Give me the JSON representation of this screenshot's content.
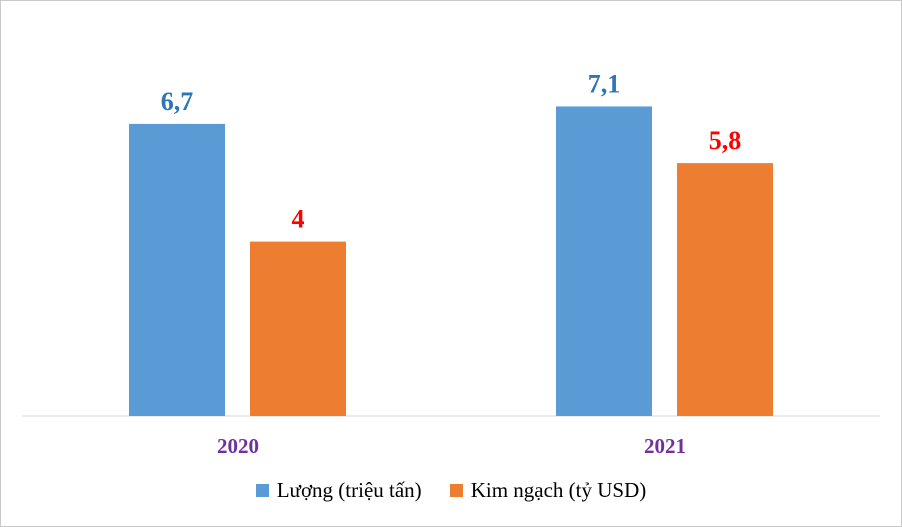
{
  "chart_data": {
    "type": "bar",
    "categories": [
      "2020",
      "2021"
    ],
    "series": [
      {
        "name": "Lượng (triệu tấn)",
        "values": [
          6.7,
          7.1
        ],
        "labels": [
          "6,7",
          "7,1"
        ],
        "color": "#5b9bd5",
        "label_color": "#2e75b6"
      },
      {
        "name": "Kim ngạch (tỷ USD)",
        "values": [
          4,
          5.8
        ],
        "labels": [
          "4",
          "5,8"
        ],
        "color": "#ed7d31",
        "label_color": "#ff0000"
      }
    ],
    "category_label_color": "#7030a0",
    "ylim": [
      0,
      7.5
    ],
    "grid": false,
    "legend_position": "bottom"
  }
}
